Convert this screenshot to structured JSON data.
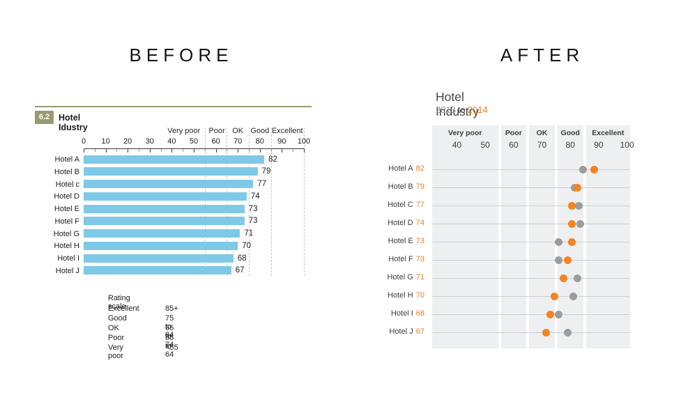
{
  "headings": {
    "before": "BEFORE",
    "after": "AFTER"
  },
  "colors": {
    "accent_olive": "#9a9a72",
    "bar_blue": "#7ec9e8",
    "band_bg": "#edeff1",
    "row_line": "#cbced0",
    "dot_gray": "#9c9c9c",
    "dot_orange": "#f5831f",
    "text_orange": "#e87d1e",
    "axis_dark": "#3a3a3a"
  },
  "before": {
    "figure_badge": "6.2",
    "title": "Hotel Idustry",
    "rating_scale_title": "Rating scale",
    "rating_scale_rows": [
      {
        "label": "Excellent",
        "range": "85+"
      },
      {
        "label": "Good",
        "range": "75 to 84"
      },
      {
        "label": "OK",
        "range": "65 to 74"
      },
      {
        "label": "Poor",
        "range": "55 to 64"
      },
      {
        "label": "Very poor",
        "range": "<55"
      }
    ]
  },
  "after": {
    "title": "Hotel Industry",
    "subtitle_from": "2013",
    "subtitle_mid": "to",
    "subtitle_to": "2014"
  },
  "chart_data": [
    {
      "id": "before-bar-chart",
      "type": "bar",
      "orientation": "horizontal",
      "figure_number": "6.2",
      "title": "Hotel Idustry",
      "categories": [
        "Hotel A",
        "Hotel B",
        "Hotel c",
        "Hotel D",
        "Hotel E",
        "Hotel F",
        "Hotel G",
        "Hotel H",
        "Hotel I",
        "Hotel J"
      ],
      "values": [
        82,
        79,
        77,
        74,
        73,
        73,
        71,
        70,
        68,
        67
      ],
      "xlim": [
        0,
        100
      ],
      "x_ticks": [
        0,
        10,
        20,
        30,
        40,
        50,
        60,
        70,
        80,
        90,
        100
      ],
      "boundary_lines": [
        55,
        65,
        75,
        85,
        100
      ],
      "category_bands": [
        {
          "label": "Very poor",
          "center": 45.5
        },
        {
          "label": "Poor",
          "center": 60.5
        },
        {
          "label": "OK",
          "center": 70
        },
        {
          "label": "Good",
          "center": 80
        },
        {
          "label": "Excellent",
          "center": 92.5
        }
      ],
      "rating_bands": [
        {
          "label": "Excellent",
          "range": "85+"
        },
        {
          "label": "Good",
          "range": "75 to 84"
        },
        {
          "label": "OK",
          "range": "65 to 74"
        },
        {
          "label": "Poor",
          "range": "55 to 64"
        },
        {
          "label": "Very poor",
          "range": "<55"
        }
      ],
      "bar_color": "#7ec9e8",
      "grid": "dashed-boundaries"
    },
    {
      "id": "after-dot-plot",
      "type": "scatter",
      "subtype": "dot-plot",
      "title": "Hotel Industry",
      "subtitle": "2013 to 2014",
      "categories": [
        "Hotel A",
        "Hotel B",
        "Hotel C",
        "Hotel D",
        "Hotel E",
        "Hotel F",
        "Hotel G",
        "Hotel H",
        "Hotel I",
        "Hotel J"
      ],
      "row_value_labels": [
        82,
        79,
        77,
        74,
        73,
        73,
        71,
        70,
        68,
        67
      ],
      "series": [
        {
          "name": "2013",
          "color": "#9c9c9c",
          "values": [
            84.5,
            81.5,
            83,
            83.5,
            76,
            76,
            82.5,
            81,
            76,
            79
          ]
        },
        {
          "name": "2014",
          "color": "#f5831f",
          "values": [
            88.5,
            82.5,
            80.5,
            80.5,
            80.5,
            79,
            77.5,
            74.5,
            73,
            71.5
          ]
        }
      ],
      "xlim": [
        31,
        101
      ],
      "x_ticks": [
        40,
        50,
        60,
        70,
        80,
        90,
        100
      ],
      "band_boundaries": [
        55,
        65,
        75,
        85
      ],
      "band_labels": [
        "Very poor",
        "Poor",
        "OK",
        "Good",
        "Excellent"
      ],
      "legend_position": "none",
      "grid": "row-lines"
    }
  ]
}
